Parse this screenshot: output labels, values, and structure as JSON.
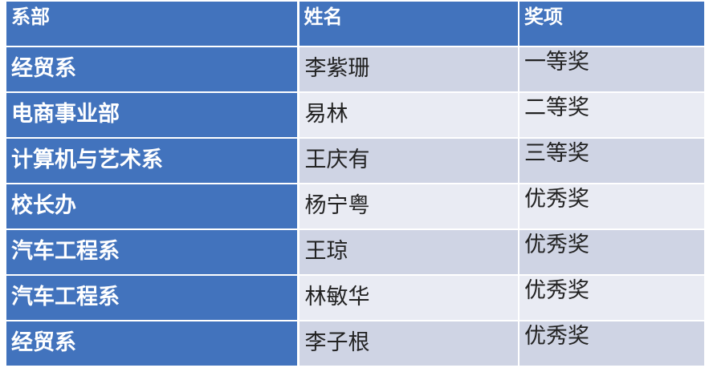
{
  "table": {
    "headers": [
      "系部",
      "姓名",
      "奖项"
    ],
    "rows": [
      {
        "department": "经贸系",
        "name": "李紫珊",
        "award": "一等奖"
      },
      {
        "department": "电商事业部",
        "name": "易林",
        "award": "二等奖"
      },
      {
        "department": "计算机与艺术系",
        "name": "王庆有",
        "award": "三等奖"
      },
      {
        "department": "校长办",
        "name": "杨宁粤",
        "award": "优秀奖"
      },
      {
        "department": "汽车工程系",
        "name": "王琼",
        "award": "优秀奖"
      },
      {
        "department": "汽车工程系",
        "name": "林敏华",
        "award": "优秀奖"
      },
      {
        "department": "经贸系",
        "name": "李子根",
        "award": "优秀奖"
      }
    ]
  },
  "colors": {
    "header_fill": "#4273bd",
    "first_column_fill": "#4273bd",
    "band_dark": "#cfd4e4",
    "band_light": "#e9ebf3",
    "header_text": "#ffffff",
    "body_text": "#222222",
    "divider": "#ffffff"
  },
  "chart_data": {
    "type": "table",
    "title": "",
    "columns": [
      "系部",
      "姓名",
      "奖项"
    ],
    "rows": [
      [
        "经贸系",
        "李紫珊",
        "一等奖"
      ],
      [
        "电商事业部",
        "易林",
        "二等奖"
      ],
      [
        "计算机与艺术系",
        "王庆有",
        "三等奖"
      ],
      [
        "校长办",
        "杨宁粤",
        "优秀奖"
      ],
      [
        "汽车工程系",
        "王琼",
        "优秀奖"
      ],
      [
        "汽车工程系",
        "林敏华",
        "优秀奖"
      ],
      [
        "经贸系",
        "李子根",
        "优秀奖"
      ]
    ],
    "layout_hints": {
      "header_row": true,
      "first_column_emphasis": true,
      "banded_rows": true,
      "band_pattern": [
        "dark",
        "light",
        "dark",
        "light",
        "dark",
        "light",
        "dark"
      ]
    }
  }
}
